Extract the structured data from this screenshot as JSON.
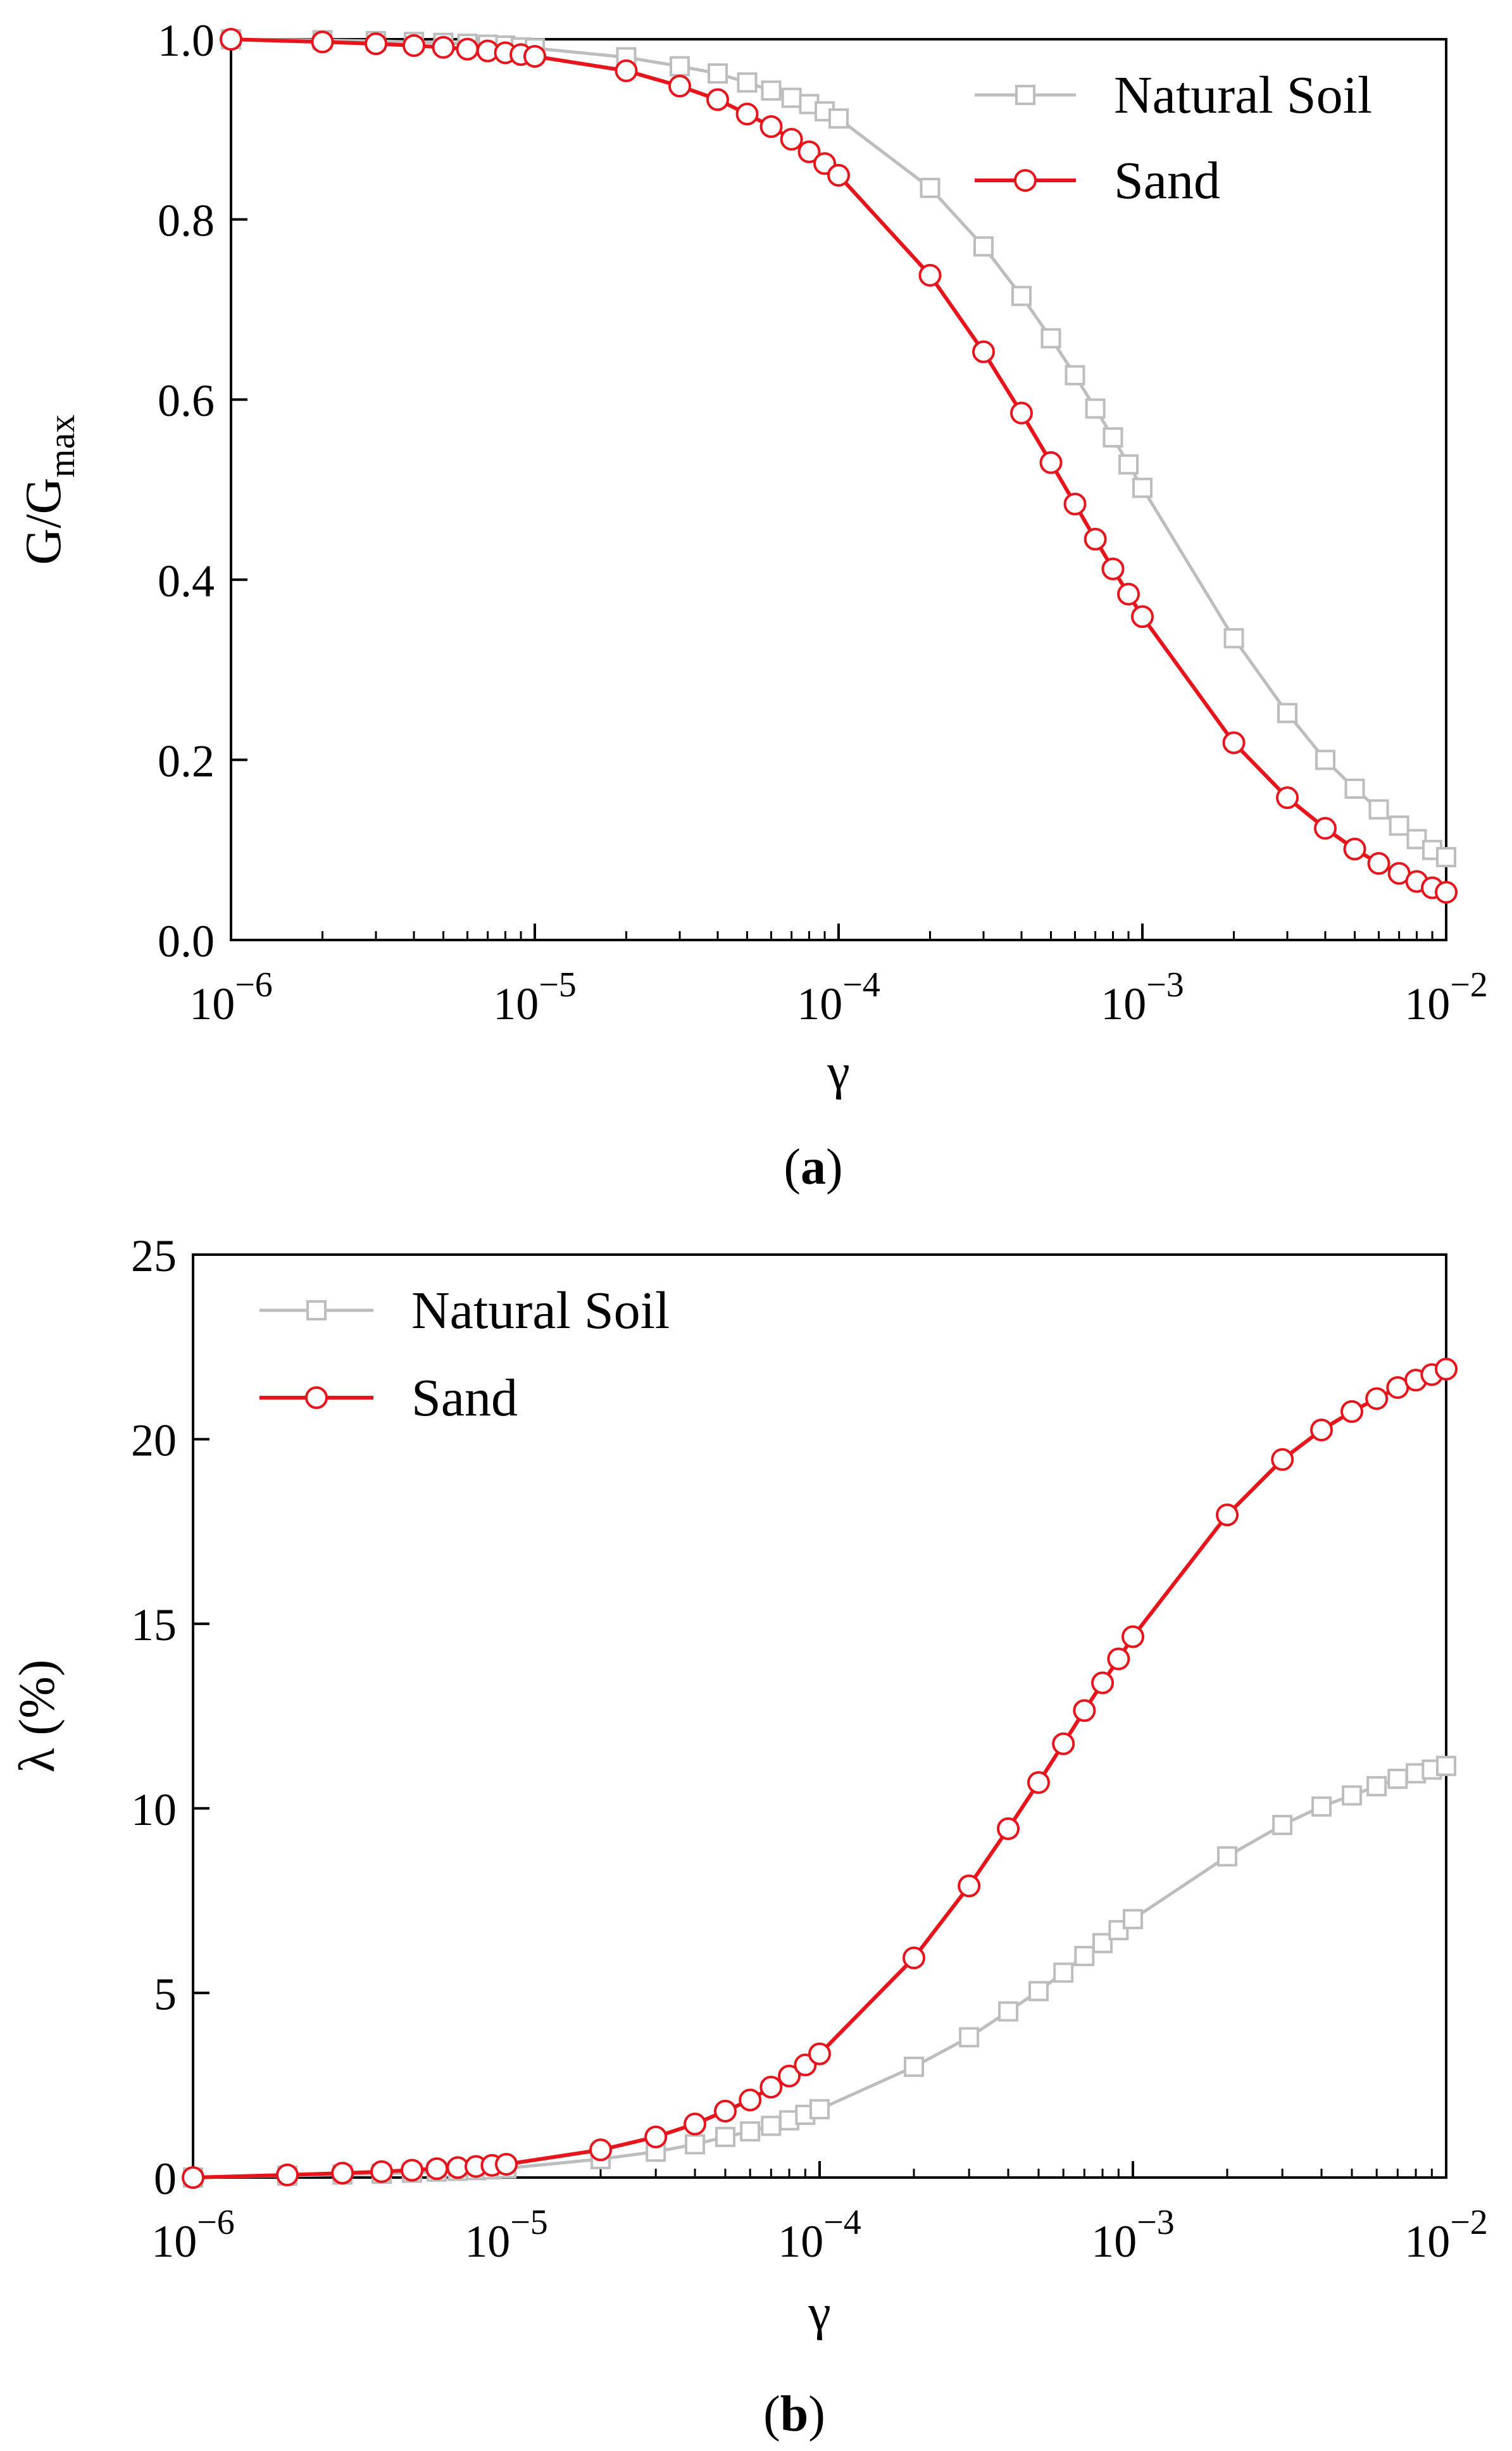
{
  "chart_data": [
    {
      "type": "line",
      "panel_id": "a",
      "caption": "a",
      "xscale": "log",
      "xlim": [
        1e-06,
        0.01
      ],
      "ylim": [
        0,
        1
      ],
      "xlabel": "γ",
      "ylabel": {
        "base": "G/G",
        "subscript": "max"
      },
      "xticks": [
        {
          "value": 1e-06,
          "mantissa": "10",
          "exponent": "−6"
        },
        {
          "value": 1e-05,
          "mantissa": "10",
          "exponent": "−5"
        },
        {
          "value": 0.0001,
          "mantissa": "10",
          "exponent": "−4"
        },
        {
          "value": 0.001,
          "mantissa": "10",
          "exponent": "−3"
        },
        {
          "value": 0.01,
          "mantissa": "10",
          "exponent": "−2"
        }
      ],
      "yticks": [
        {
          "value": 0,
          "label": "0.0"
        },
        {
          "value": 0.2,
          "label": "0.2"
        },
        {
          "value": 0.4,
          "label": "0.4"
        },
        {
          "value": 0.6,
          "label": "0.6"
        },
        {
          "value": 0.8,
          "label": "0.8"
        },
        {
          "value": 1.0,
          "label": "1.0"
        }
      ],
      "legend_position": "top-right",
      "series": [
        {
          "name": "Natural Soil",
          "color": "#bdbdbd",
          "marker": "square",
          "x": [
            1e-06,
            2e-06,
            3e-06,
            4e-06,
            5e-06,
            6e-06,
            7e-06,
            8e-06,
            9e-06,
            1e-05,
            2e-05,
            3e-05,
            4e-05,
            5e-05,
            6e-05,
            7e-05,
            8e-05,
            9e-05,
            0.0001,
            0.0002,
            0.0003,
            0.0004,
            0.0005,
            0.0006,
            0.0007,
            0.0008,
            0.0009,
            0.001,
            0.002,
            0.003,
            0.004,
            0.005,
            0.006,
            0.007,
            0.008,
            0.009,
            0.01
          ],
          "values": [
            1.0,
            0.999,
            0.998,
            0.997,
            0.996,
            0.995,
            0.994,
            0.993,
            0.991,
            0.99,
            0.98,
            0.97,
            0.962,
            0.952,
            0.943,
            0.935,
            0.928,
            0.92,
            0.912,
            0.835,
            0.77,
            0.715,
            0.668,
            0.627,
            0.59,
            0.558,
            0.528,
            0.502,
            0.335,
            0.252,
            0.2,
            0.168,
            0.145,
            0.127,
            0.112,
            0.1,
            0.092
          ]
        },
        {
          "name": "Sand",
          "color": "#e8141c",
          "marker": "circle",
          "x": [
            1e-06,
            2e-06,
            3e-06,
            4e-06,
            5e-06,
            6e-06,
            7e-06,
            8e-06,
            9e-06,
            1e-05,
            2e-05,
            3e-05,
            4e-05,
            5e-05,
            6e-05,
            7e-05,
            8e-05,
            9e-05,
            0.0001,
            0.0002,
            0.0003,
            0.0004,
            0.0005,
            0.0006,
            0.0007,
            0.0008,
            0.0009,
            0.001,
            0.002,
            0.003,
            0.004,
            0.005,
            0.006,
            0.007,
            0.008,
            0.009,
            0.01
          ],
          "values": [
            1.0,
            0.997,
            0.995,
            0.993,
            0.991,
            0.989,
            0.987,
            0.985,
            0.983,
            0.981,
            0.965,
            0.948,
            0.933,
            0.917,
            0.903,
            0.889,
            0.875,
            0.862,
            0.849,
            0.738,
            0.653,
            0.585,
            0.53,
            0.484,
            0.445,
            0.412,
            0.384,
            0.359,
            0.219,
            0.158,
            0.124,
            0.101,
            0.085,
            0.074,
            0.065,
            0.058,
            0.053
          ]
        }
      ]
    },
    {
      "type": "line",
      "panel_id": "b",
      "caption": "b",
      "xscale": "log",
      "xlim": [
        1e-06,
        0.01
      ],
      "ylim": [
        0,
        25
      ],
      "xlabel": "γ",
      "ylabel": {
        "base": "λ (%)",
        "subscript": ""
      },
      "xticks": [
        {
          "value": 1e-06,
          "mantissa": "10",
          "exponent": "−6"
        },
        {
          "value": 1e-05,
          "mantissa": "10",
          "exponent": "−5"
        },
        {
          "value": 0.0001,
          "mantissa": "10",
          "exponent": "−4"
        },
        {
          "value": 0.001,
          "mantissa": "10",
          "exponent": "−3"
        },
        {
          "value": 0.01,
          "mantissa": "10",
          "exponent": "−2"
        }
      ],
      "yticks": [
        {
          "value": 0,
          "label": "0"
        },
        {
          "value": 5,
          "label": "5"
        },
        {
          "value": 10,
          "label": "10"
        },
        {
          "value": 15,
          "label": "15"
        },
        {
          "value": 20,
          "label": "20"
        },
        {
          "value": 25,
          "label": "25"
        }
      ],
      "legend_position": "top-left",
      "series": [
        {
          "name": "Natural Soil",
          "color": "#bdbdbd",
          "marker": "square",
          "x": [
            1e-06,
            2e-06,
            3e-06,
            4e-06,
            5e-06,
            6e-06,
            7e-06,
            8e-06,
            9e-06,
            1e-05,
            2e-05,
            3e-05,
            4e-05,
            5e-05,
            6e-05,
            7e-05,
            8e-05,
            9e-05,
            0.0001,
            0.0002,
            0.0003,
            0.0004,
            0.0005,
            0.0006,
            0.0007,
            0.0008,
            0.0009,
            0.001,
            0.002,
            0.003,
            0.004,
            0.005,
            0.006,
            0.007,
            0.008,
            0.009,
            0.01
          ],
          "values": [
            0.0,
            0.05,
            0.08,
            0.1,
            0.13,
            0.16,
            0.18,
            0.2,
            0.22,
            0.25,
            0.5,
            0.7,
            0.9,
            1.1,
            1.25,
            1.4,
            1.55,
            1.7,
            1.85,
            3.0,
            3.8,
            4.5,
            5.05,
            5.55,
            6.0,
            6.35,
            6.7,
            7.0,
            8.7,
            9.55,
            10.05,
            10.35,
            10.6,
            10.8,
            10.95,
            11.05,
            11.15
          ]
        },
        {
          "name": "Sand",
          "color": "#e8141c",
          "marker": "circle",
          "x": [
            1e-06,
            2e-06,
            3e-06,
            4e-06,
            5e-06,
            6e-06,
            7e-06,
            8e-06,
            9e-06,
            1e-05,
            2e-05,
            3e-05,
            4e-05,
            5e-05,
            6e-05,
            7e-05,
            8e-05,
            9e-05,
            0.0001,
            0.0002,
            0.0003,
            0.0004,
            0.0005,
            0.0006,
            0.0007,
            0.0008,
            0.0009,
            0.001,
            0.002,
            0.003,
            0.004,
            0.005,
            0.006,
            0.007,
            0.008,
            0.009,
            0.01
          ],
          "values": [
            0.0,
            0.07,
            0.12,
            0.16,
            0.2,
            0.24,
            0.27,
            0.3,
            0.33,
            0.36,
            0.75,
            1.1,
            1.45,
            1.8,
            2.1,
            2.45,
            2.75,
            3.05,
            3.35,
            5.95,
            7.9,
            9.45,
            10.7,
            11.75,
            12.65,
            13.4,
            14.05,
            14.65,
            17.95,
            19.45,
            20.25,
            20.75,
            21.1,
            21.4,
            21.6,
            21.75,
            21.9
          ]
        }
      ]
    }
  ]
}
